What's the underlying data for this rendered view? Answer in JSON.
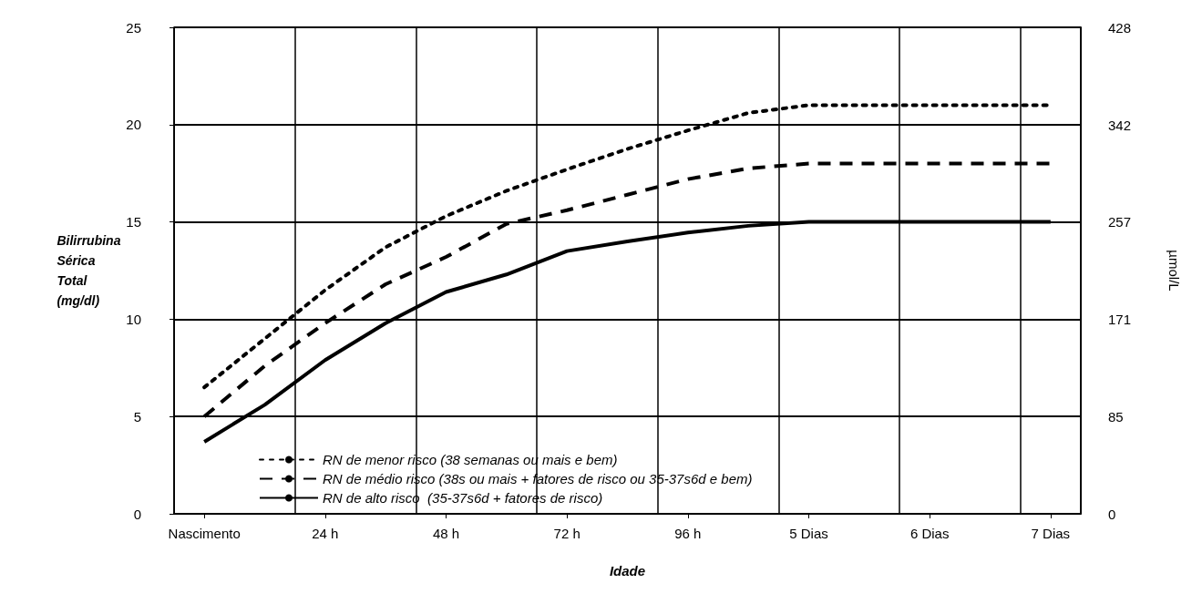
{
  "chart_data": {
    "type": "line",
    "xlabel": "Idade",
    "ylabel": "Bilirrubina Sérica Total (mg/dl)",
    "y2label": "µmol/L",
    "categories": [
      "Nascimento",
      null,
      "24 h",
      null,
      "48 h",
      null,
      "72 h",
      null,
      "96 h",
      null,
      "5 Dias",
      null,
      "6 Dias",
      null,
      "7 Dias"
    ],
    "series": [
      {
        "name": "RN de menor risco (38 semanas ou mais e bem)",
        "color": "#000000",
        "line_style": "dotted",
        "values": [
          6.5,
          9.0,
          11.5,
          13.7,
          15.3,
          16.6,
          17.7,
          18.75,
          19.7,
          20.6,
          21.0,
          21.0,
          21.0,
          21.0,
          21.0
        ]
      },
      {
        "name": "RN de médio risco (38s ou mais + fatores de risco ou 35-37s6d e bem)",
        "color": "#000000",
        "line_style": "dashed",
        "values": [
          5.0,
          7.6,
          9.8,
          11.8,
          13.2,
          14.9,
          15.6,
          16.4,
          17.2,
          17.75,
          18.0,
          18.0,
          18.0,
          18.0,
          18.0
        ]
      },
      {
        "name": "RN de alto risco  (35-37s6d + fatores de risco)",
        "color": "#000000",
        "line_style": "solid",
        "values": [
          3.7,
          5.6,
          7.9,
          9.8,
          11.4,
          12.3,
          13.5,
          14.0,
          14.45,
          14.8,
          15.0,
          15.0,
          15.0,
          15.0,
          15.0
        ]
      }
    ],
    "ylim": [
      0,
      25
    ],
    "yticks": [
      0,
      5,
      10,
      15,
      20,
      25
    ],
    "y2lim": [
      0,
      428
    ],
    "y2ticks": [
      0,
      85,
      171,
      257,
      342,
      428
    ],
    "grid": true,
    "legend": "bottom",
    "marker": "none"
  }
}
